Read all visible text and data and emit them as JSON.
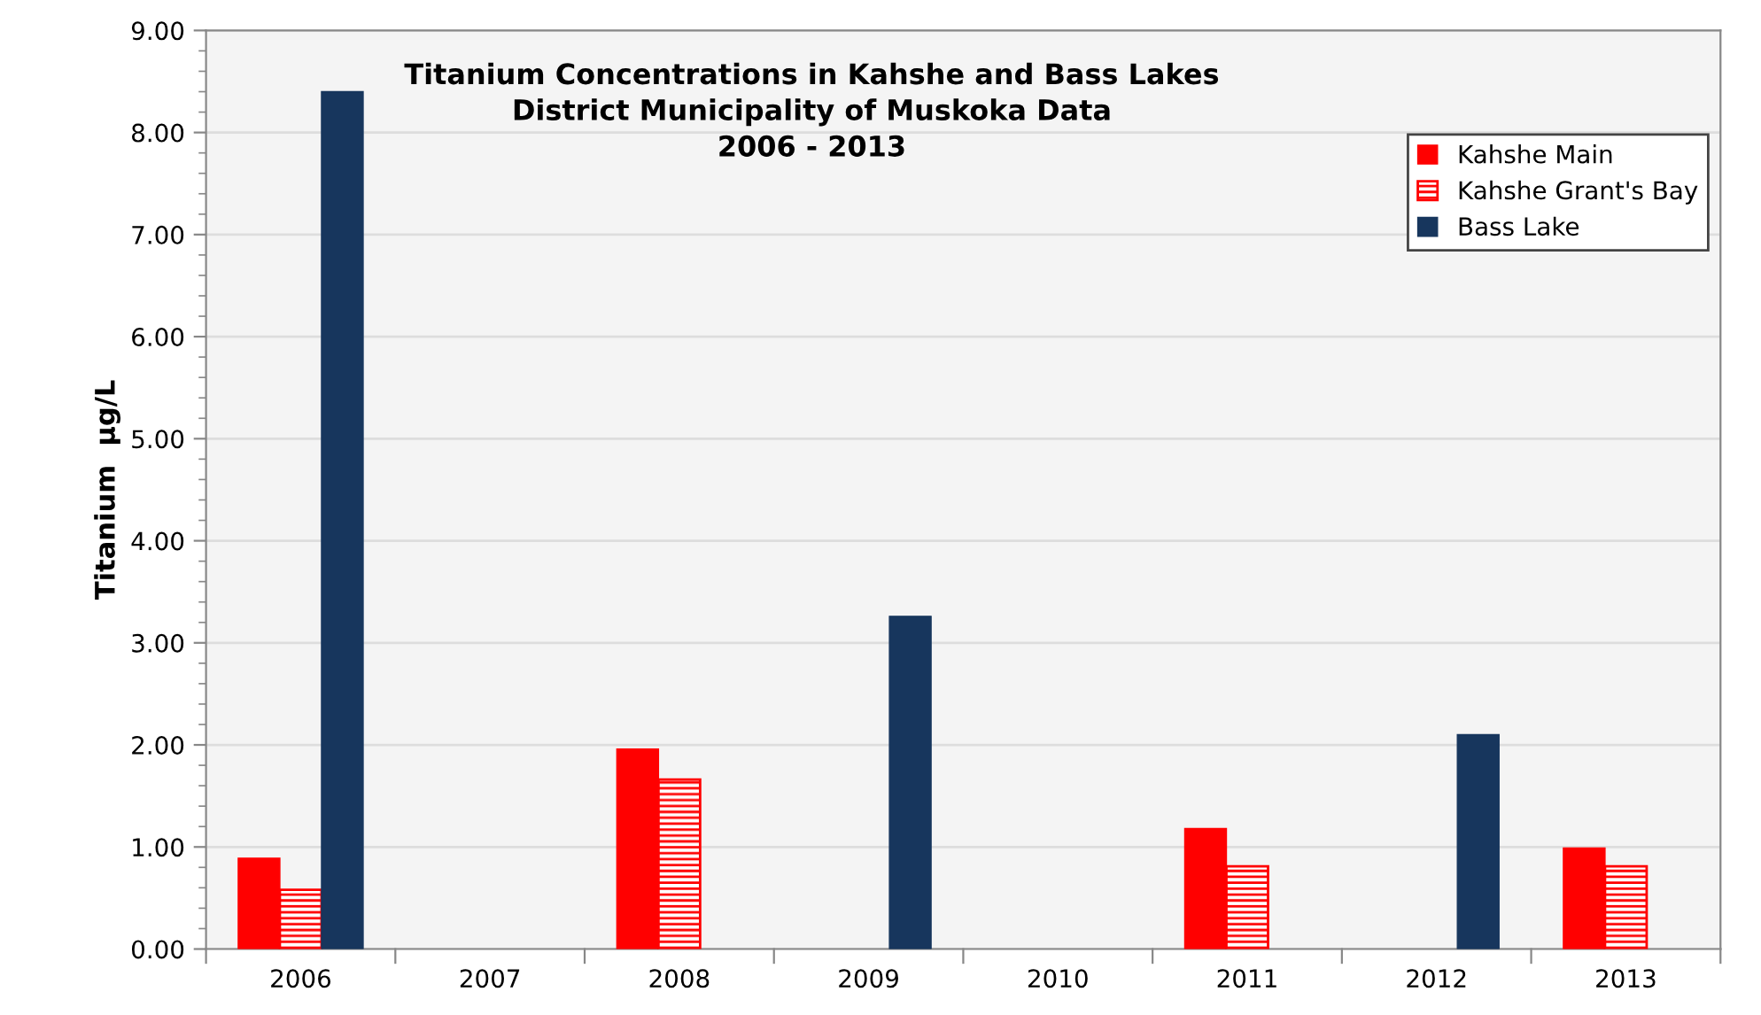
{
  "chart_data": {
    "type": "bar",
    "title": "Titanium Concentrations in Kahshe and Bass Lakes\nDistrict Municipality of Muskoka Data\n2006 - 2013",
    "ylabel": "Titanium  µg/L",
    "categories": [
      "2006",
      "2007",
      "2008",
      "2009",
      "2010",
      "2011",
      "2012",
      "2013"
    ],
    "series": [
      {
        "name": "Kahshe Main",
        "color": "#ff0000",
        "values": [
          0.89,
          null,
          1.96,
          null,
          null,
          1.18,
          null,
          0.99
        ]
      },
      {
        "name": "Kahshe Grant's Bay",
        "color": "#ff0000",
        "values": [
          0.58,
          null,
          1.66,
          null,
          null,
          0.81,
          null,
          0.81
        ]
      },
      {
        "name": "Bass Lake",
        "color": "#17365d",
        "values": [
          8.4,
          null,
          null,
          3.26,
          null,
          null,
          2.1,
          null
        ]
      }
    ],
    "ylim": [
      0,
      9
    ],
    "yticks": [
      {
        "value": 0,
        "label": "0.00"
      },
      {
        "value": 1,
        "label": "1.00"
      },
      {
        "value": 2,
        "label": "2.00"
      },
      {
        "value": 3,
        "label": "3.00"
      },
      {
        "value": 4,
        "label": "4.00"
      },
      {
        "value": 5,
        "label": "5.00"
      },
      {
        "value": 6,
        "label": "6.00"
      },
      {
        "value": 7,
        "label": "7.00"
      },
      {
        "value": 8,
        "label": "8.00"
      },
      {
        "value": 9,
        "label": "9.00"
      }
    ],
    "grid": "y",
    "legend": "top right"
  }
}
